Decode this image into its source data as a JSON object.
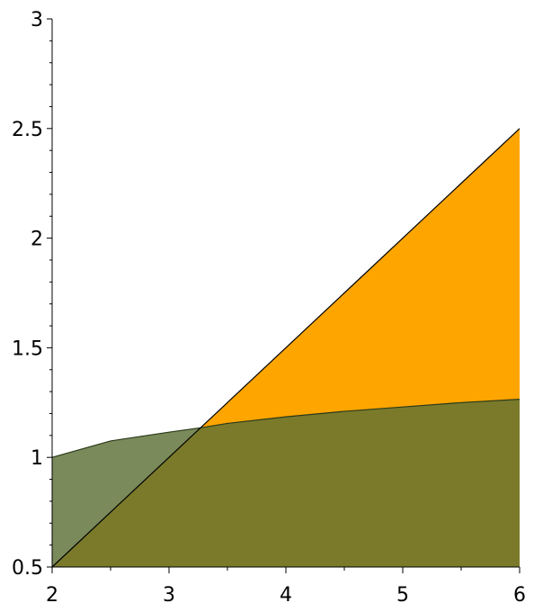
{
  "chart_data": {
    "type": "area",
    "title": "",
    "xlabel": "",
    "ylabel": "",
    "xlim": [
      2,
      6
    ],
    "ylim": [
      0.5,
      3
    ],
    "grid": false,
    "x_ticks": [
      2,
      3,
      4,
      5,
      6
    ],
    "x_tick_labels": [
      "2",
      "3",
      "4",
      "5",
      "6"
    ],
    "y_ticks": [
      0.5,
      1,
      1.5,
      2,
      2.5,
      3
    ],
    "y_tick_labels": [
      "0.5",
      "1",
      "1.5",
      "2",
      "2.5",
      "3"
    ],
    "series": [
      {
        "x": [
          2,
          2.5,
          3,
          3.27,
          3.5,
          4,
          4.5,
          5,
          5.5,
          6
        ],
        "values": [
          1.0,
          1.075,
          1.115,
          1.135,
          1.155,
          1.185,
          1.21,
          1.23,
          1.25,
          1.265
        ],
        "color": "#7a8a5a",
        "edge": "#2a3a1a"
      },
      {
        "x": [
          2,
          6
        ],
        "values": [
          0.5,
          2.5
        ],
        "color": "#ffa500",
        "edge": "#000000"
      }
    ],
    "overlap_color": "#7a7a2a"
  }
}
